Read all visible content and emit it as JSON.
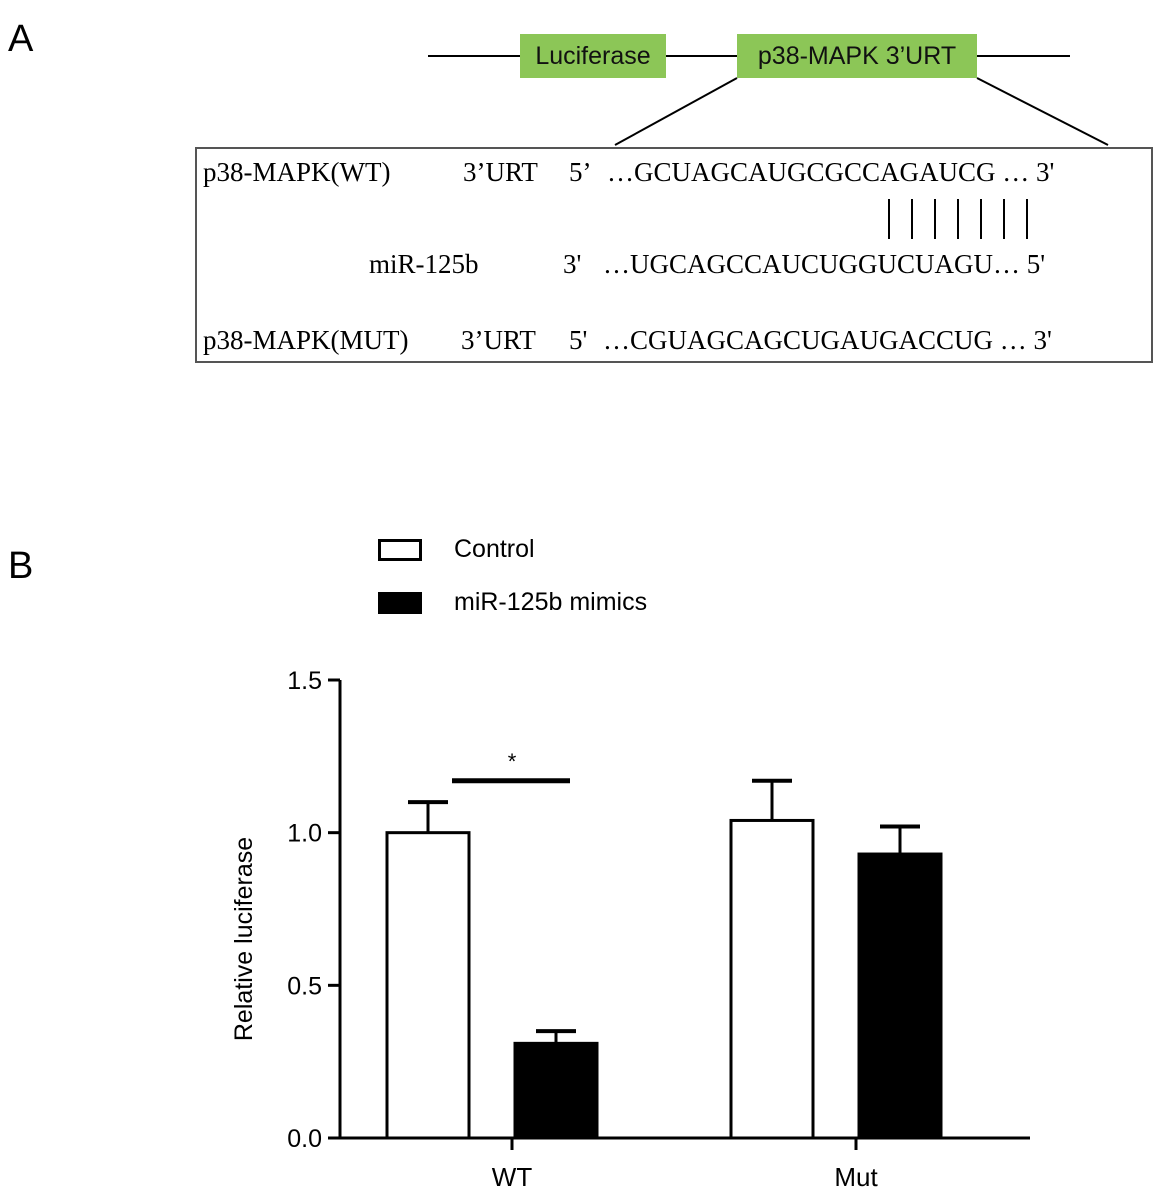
{
  "panels": {
    "a": "A",
    "b": "B"
  },
  "construct": {
    "left_box": "Luciferase",
    "right_box": "p38-MAPK 3’URT",
    "box_color": "#8cc657"
  },
  "sequences": {
    "wt": {
      "name": "p38-MAPK(WT)",
      "region": "3’URT",
      "end5": "5’",
      "seq": "…GCUAGCAUGCGCCAGAUCG … 3'"
    },
    "mir": {
      "name": "miR-125b",
      "end3": "3'",
      "seq": "…UGCAGCCAUCUGGUCUAGU… 5'"
    },
    "mut": {
      "name": "p38-MAPK(MUT)",
      "region": "3’URT",
      "end5": "5'",
      "seq": "…CGUAGCAGCUGAUGACCUG … 3'"
    },
    "pair_count": 7
  },
  "chart_data": {
    "type": "bar",
    "categories": [
      "WT",
      "Mut"
    ],
    "series": [
      {
        "name": "Control",
        "values": [
          1.0,
          1.04
        ],
        "errors": [
          0.1,
          0.13
        ],
        "fill": "#ffffff"
      },
      {
        "name": "miR-125b mimics",
        "values": [
          0.31,
          0.93
        ],
        "errors": [
          0.04,
          0.09
        ],
        "fill": "#000000"
      }
    ],
    "ylabel": "Relative luciferase",
    "ylim": [
      0,
      1.5
    ],
    "yticks": [
      "0.0",
      "0.5",
      "1.0",
      "1.5"
    ],
    "significance": {
      "label": "*",
      "category": "WT"
    },
    "legend_position": "top"
  }
}
